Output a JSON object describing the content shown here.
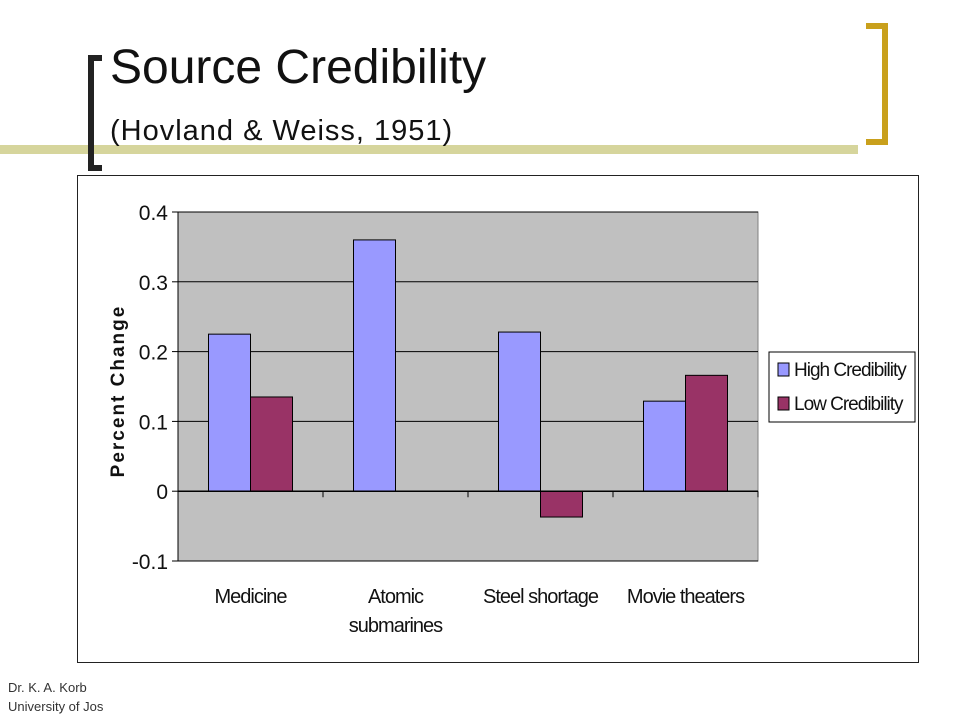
{
  "slide": {
    "title": "Source Credibility",
    "subtitle": "(Hovland & Weiss, 1951)",
    "footer_line1": "Dr. K. A. Korb",
    "footer_line2": "University of Jos"
  },
  "colors": {
    "accent_bar": "#d6d59c",
    "bracket_gold": "#c9a01c",
    "plot_bg": "#c0c0c0",
    "high_series": "#9999ff",
    "low_series": "#993366"
  },
  "chart_data": {
    "type": "bar",
    "title": "",
    "xlabel": "",
    "ylabel": "Percent Change",
    "ylim": [
      -0.1,
      0.4
    ],
    "yticks": [
      -0.1,
      0,
      0.1,
      0.2,
      0.3,
      0.4
    ],
    "ytick_labels": [
      "-0.1",
      "0",
      "0.1",
      "0.2",
      "0.3",
      "0.4"
    ],
    "grid": true,
    "legend_position": "right",
    "categories": [
      "Medicine",
      "Atomic submarines",
      "Steel shortage",
      "Movie theaters"
    ],
    "category_lines": [
      [
        "Medicine"
      ],
      [
        "Atomic",
        "submarines"
      ],
      [
        "Steel shortage"
      ],
      [
        "Movie theaters"
      ]
    ],
    "series": [
      {
        "name": "High Credibility",
        "color": "#9999ff",
        "values": [
          0.225,
          0.36,
          0.228,
          0.129
        ]
      },
      {
        "name": "Low Credibility",
        "color": "#993366",
        "values": [
          0.135,
          0.0,
          -0.037,
          0.166
        ]
      }
    ]
  }
}
